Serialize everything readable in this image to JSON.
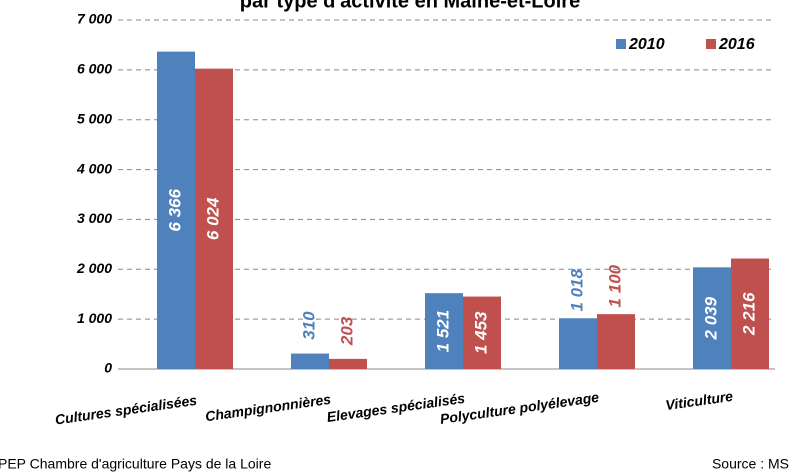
{
  "chart_data": {
    "type": "bar",
    "title": "par type d'activité en Maine-et-Loire",
    "categories": [
      "Cultures spécialisées",
      "Champignonnières",
      "Elevages spécialisés",
      "Polyculture polyélevage",
      "Viticulture"
    ],
    "series": [
      {
        "name": "2010",
        "color": "#4f81bd",
        "values": [
          6366,
          310,
          1521,
          1018,
          2039
        ],
        "value_labels": [
          "6 366",
          "310",
          "1 521",
          "1 018",
          "2 039"
        ]
      },
      {
        "name": "2016",
        "color": "#c0504d",
        "values": [
          6024,
          203,
          1453,
          1100,
          2216
        ],
        "value_labels": [
          "6 024",
          "203",
          "1 453",
          "1 100",
          "2 216"
        ]
      }
    ],
    "ylim": [
      0,
      7000
    ],
    "yticks": [
      0,
      {
        "value": 1000,
        "label": "1 000"
      },
      {
        "value": 2000,
        "label": "2 000"
      },
      {
        "value": 3000,
        "label": "3 000"
      },
      {
        "value": 4000,
        "label": "4 000"
      },
      {
        "value": 5000,
        "label": "5 000"
      },
      {
        "value": 6000,
        "label": "6 000"
      },
      {
        "value": 7000,
        "label": "7 000"
      }
    ],
    "grid": true,
    "legend": "top-right",
    "footer_left": "PEP Chambre d'agriculture Pays de la Loire",
    "footer_right": "Source : MS"
  }
}
